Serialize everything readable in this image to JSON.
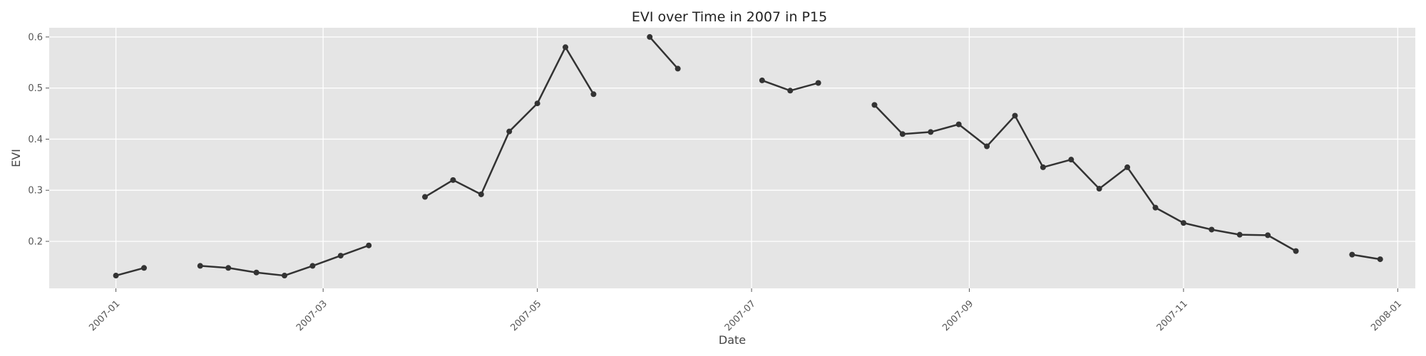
{
  "chart_data": {
    "type": "line",
    "title": "EVI over Time in 2007 in P15",
    "xlabel": "Date",
    "ylabel": "EVI",
    "x_ticks": [
      "2007-01",
      "2007-03",
      "2007-05",
      "2007-07",
      "2007-09",
      "2007-11",
      "2008-01"
    ],
    "y_ticks": [
      "0.2",
      "0.3",
      "0.4",
      "0.5",
      "0.6"
    ],
    "xlim": [
      "2006-12-13",
      "2008-01-06"
    ],
    "ylim": [
      0.108,
      0.618
    ],
    "grid": true,
    "series": [
      {
        "x": [
          "2007-01-01",
          "2007-01-09",
          "2007-01-17",
          "2007-01-25",
          "2007-02-02",
          "2007-02-10",
          "2007-02-18",
          "2007-02-26",
          "2007-03-06",
          "2007-03-14",
          "2007-03-22",
          "2007-03-30",
          "2007-04-07",
          "2007-04-15",
          "2007-04-23",
          "2007-05-01",
          "2007-05-09",
          "2007-05-17",
          "2007-05-25",
          "2007-06-02",
          "2007-06-10",
          "2007-06-18",
          "2007-06-26",
          "2007-07-04",
          "2007-07-12",
          "2007-07-20",
          "2007-07-28",
          "2007-08-05",
          "2007-08-13",
          "2007-08-21",
          "2007-08-29",
          "2007-09-06",
          "2007-09-14",
          "2007-09-22",
          "2007-09-30",
          "2007-10-08",
          "2007-10-16",
          "2007-10-24",
          "2007-11-01",
          "2007-11-09",
          "2007-11-17",
          "2007-11-25",
          "2007-12-03",
          "2007-12-11",
          "2007-12-19",
          "2007-12-27"
        ],
        "values": [
          0.133,
          0.148,
          null,
          0.152,
          0.148,
          0.139,
          0.133,
          0.152,
          0.172,
          0.192,
          null,
          0.287,
          0.32,
          0.292,
          0.415,
          0.47,
          0.58,
          0.488,
          null,
          0.6,
          0.538,
          null,
          null,
          0.515,
          0.495,
          0.51,
          null,
          0.467,
          0.41,
          0.414,
          0.429,
          0.386,
          0.446,
          0.345,
          0.36,
          0.303,
          0.345,
          0.266,
          0.236,
          0.223,
          0.213,
          0.212,
          0.181,
          null,
          0.174,
          0.165
        ]
      }
    ],
    "line_color": "#333333",
    "background_color": "#e5e5e5",
    "grid_color": "#ffffff"
  }
}
